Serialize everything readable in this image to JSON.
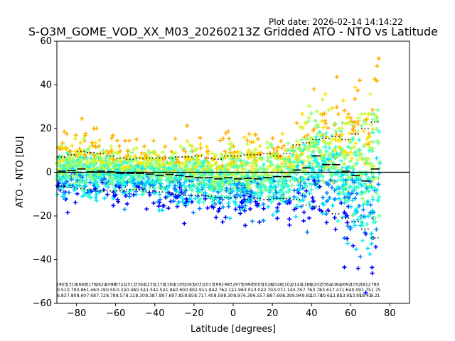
{
  "chart_data": {
    "type": "scatter",
    "title": "S-O3M_GOME_VOD_XX_M03_20260213Z Gridded ATO - NTO vs Latitude",
    "plot_date": "Plot date: 2026-02-14 14:14:22",
    "xlabel": "Latitude [degrees]",
    "ylabel": "ATO - NTO [DU]",
    "xlim": [
      -90,
      90
    ],
    "ylim": [
      -60,
      60
    ],
    "xticks": [
      -80,
      -60,
      -40,
      -20,
      0,
      20,
      40,
      60,
      80
    ],
    "yticks": [
      -60,
      -40,
      -20,
      0,
      20,
      40,
      60
    ],
    "xtick_labels": [
      "−80",
      "−60",
      "−40",
      "−20",
      "0",
      "20",
      "40",
      "60",
      "80"
    ],
    "ytick_labels": [
      "−60",
      "−40",
      "−20",
      "0",
      "20",
      "40",
      "60"
    ],
    "grid": false,
    "reference_line_y": 0,
    "marker": "plus",
    "palette": [
      "#0000ff",
      "#0080ff",
      "#00e0ff",
      "#30ffd0",
      "#80ff80",
      "#c0ff40",
      "#ffe000",
      "#ffb000"
    ],
    "bin_latitudes": [
      -87.5,
      -82.5,
      -77.5,
      -72.5,
      -67.5,
      -62.5,
      -57.5,
      -52.5,
      -47.5,
      -42.5,
      -37.5,
      -32.5,
      -27.5,
      -22.5,
      -17.5,
      -12.5,
      -7.5,
      -2.5,
      2.5,
      7.5,
      12.5,
      17.5,
      22.5,
      27.5,
      32.5,
      37.5,
      42.5,
      47.5,
      52.5,
      57.5,
      62.5,
      67.5,
      72.5
    ],
    "bin_mean": [
      0.5,
      0.8,
      1.5,
      0.2,
      0.5,
      0.2,
      -0.5,
      -0.5,
      -0.5,
      -0.8,
      -1.5,
      -1.0,
      -1.5,
      -2.0,
      -2.5,
      -2.5,
      -3.0,
      -2.5,
      -3.0,
      -2.8,
      -3.0,
      -2.5,
      -2.0,
      -2.0,
      1.0,
      2.0,
      7.5,
      3.5,
      3.5,
      0.5,
      -1.5,
      -4.0,
      1.5
    ],
    "bin_plus_std": [
      7.0,
      8.0,
      9.5,
      9.0,
      8.5,
      7.5,
      6.5,
      6.0,
      6.5,
      6.5,
      6.5,
      6.5,
      7.0,
      7.0,
      7.5,
      6.5,
      6.0,
      7.5,
      7.5,
      8.0,
      8.0,
      8.5,
      7.5,
      8.5,
      12.5,
      13.5,
      15.0,
      15.5,
      16.5,
      15.0,
      17.5,
      20.0,
      23.0
    ],
    "bin_minus_std": [
      -6.5,
      -7.0,
      -7.5,
      -8.0,
      -8.5,
      -8.5,
      -8.5,
      -8.0,
      -8.0,
      -9.0,
      -9.0,
      -9.5,
      -10.0,
      -10.5,
      -10.5,
      -11.0,
      -11.5,
      -11.5,
      -11.5,
      -12.5,
      -12.0,
      -12.5,
      -12.0,
      -12.0,
      -12.5,
      -15.0,
      -15.5,
      -18.0,
      -19.0,
      -21.0,
      -22.5,
      -26.0,
      -30.0
    ],
    "bin_counts_label_top": [
      "1903",
      "1316",
      "1666",
      "3176",
      "2624",
      "2098",
      "3741",
      "2511",
      "3364",
      "1235",
      "1174",
      "1160",
      "2105",
      "1063",
      "2031",
      "1013",
      "1992",
      "983",
      "2975",
      "1990",
      "3005",
      "1028",
      "2046",
      "1102",
      "2144",
      "1188",
      "2202",
      "3364",
      "2484",
      "2692",
      "1052",
      "1812",
      "780"
    ],
    "bin_stat_label_mid": [
      "0.51",
      "0.79",
      "0.86",
      "1.46",
      "0.19",
      "0.50",
      "-0.22",
      "-0.48",
      "-0.52",
      "-1.54",
      "-1.52",
      "-1.94",
      "-0.60",
      "-0.80",
      "-2.91",
      "-1.84",
      "-2.76",
      "-2.12",
      "-1.96",
      "-3.01",
      "-3.02",
      "-2.70",
      "-3.07",
      "-1.14",
      "-5.35",
      "-7.76",
      "-3.78",
      "-3.61",
      "-7.47",
      "-1.64",
      "-0.09",
      "-1.75",
      "-1.75"
    ],
    "bin_stat_label_bot": [
      "6.83",
      "7.80",
      "8.60",
      "7.68",
      "7.72",
      "8.78",
      "8.57",
      "8.11",
      "8.30",
      "8.38",
      "7.89",
      "7.69",
      "7.85",
      "8.85",
      "8.71",
      "7.45",
      "8.59",
      "8.30",
      "8.97",
      "6.39",
      "6.55",
      "7.88",
      "7.69",
      "8.39",
      "9.94",
      "9.81",
      "10.70",
      "10.61",
      "12.85",
      "13.95",
      "13.95",
      "18.43",
      "9.21"
    ],
    "dense_bands": [
      {
        "lat_range": [
          -90,
          75
        ],
        "y_center": 0,
        "note": "dense scatter of per-grid-cell ATO-NTO differences"
      }
    ]
  }
}
